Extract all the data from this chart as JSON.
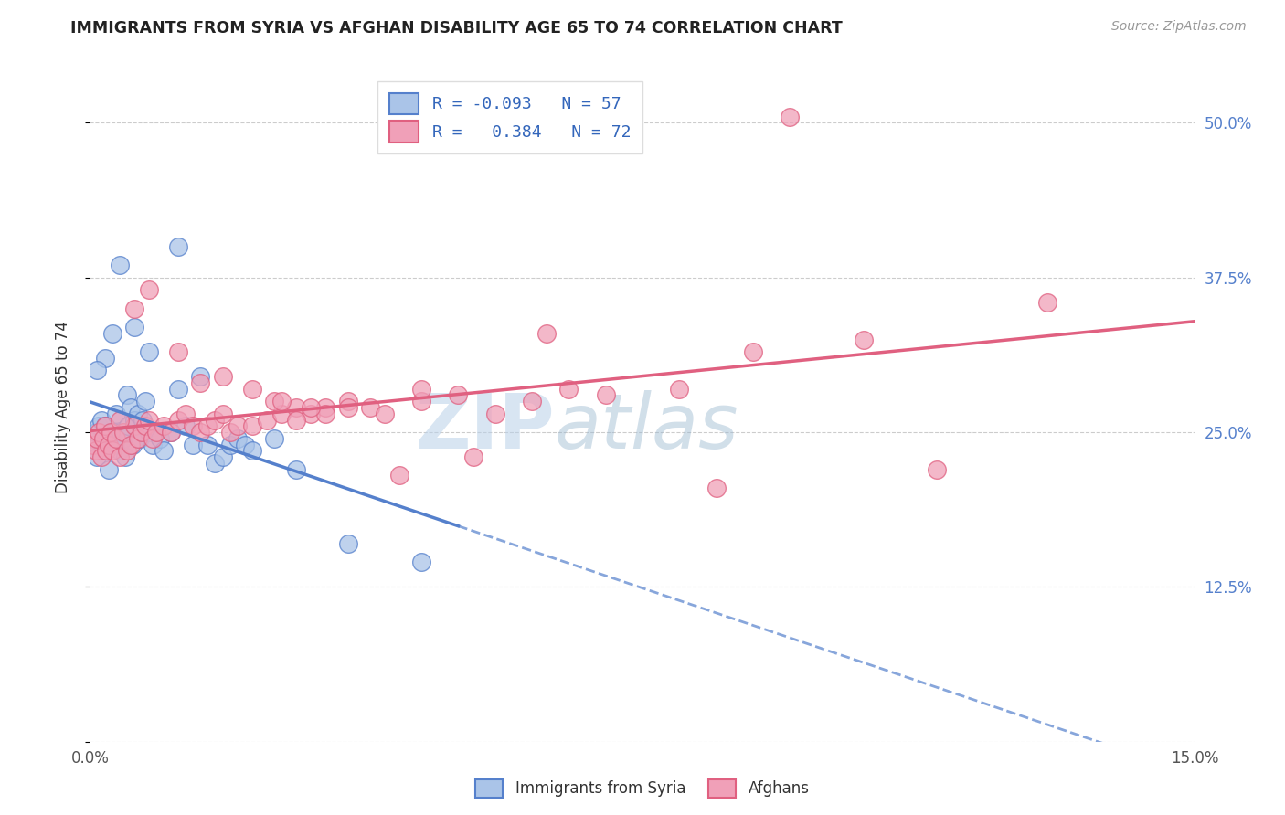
{
  "title": "IMMIGRANTS FROM SYRIA VS AFGHAN DISABILITY AGE 65 TO 74 CORRELATION CHART",
  "source": "Source: ZipAtlas.com",
  "ylabel": "Disability Age 65 to 74",
  "xlim": [
    0.0,
    15.0
  ],
  "ylim": [
    0.0,
    54.0
  ],
  "yticks": [
    0.0,
    12.5,
    25.0,
    37.5,
    50.0
  ],
  "ytick_labels_right": [
    "",
    "12.5%",
    "25.0%",
    "37.5%",
    "50.0%"
  ],
  "xticks": [
    0.0,
    3.0,
    6.0,
    9.0,
    12.0,
    15.0
  ],
  "xtick_labels": [
    "0.0%",
    "",
    "",
    "",
    "",
    "15.0%"
  ],
  "color_syria": "#aac4e8",
  "color_afghan": "#f0a0b8",
  "color_syria_line": "#5580cc",
  "color_afghan_line": "#e06080",
  "watermark_zip": "ZIP",
  "watermark_atlas": "atlas",
  "syria_x": [
    0.05,
    0.08,
    0.1,
    0.12,
    0.15,
    0.18,
    0.2,
    0.22,
    0.25,
    0.28,
    0.3,
    0.32,
    0.35,
    0.38,
    0.4,
    0.42,
    0.45,
    0.48,
    0.5,
    0.52,
    0.55,
    0.58,
    0.6,
    0.62,
    0.65,
    0.68,
    0.7,
    0.72,
    0.75,
    0.8,
    0.85,
    0.9,
    0.95,
    1.0,
    1.1,
    1.2,
    1.3,
    1.4,
    1.5,
    1.6,
    1.7,
    1.8,
    1.9,
    2.0,
    2.1,
    2.2,
    2.5,
    2.8,
    3.5,
    4.5,
    0.4,
    1.2,
    0.6,
    0.8,
    0.3,
    0.2,
    0.1
  ],
  "syria_y": [
    24.5,
    25.0,
    23.0,
    25.5,
    26.0,
    24.0,
    25.5,
    23.5,
    22.0,
    24.0,
    24.5,
    25.0,
    26.5,
    24.0,
    23.5,
    25.0,
    24.5,
    23.0,
    28.0,
    25.5,
    27.0,
    24.0,
    26.0,
    25.5,
    26.5,
    24.5,
    25.0,
    26.0,
    27.5,
    25.0,
    24.0,
    25.0,
    24.5,
    23.5,
    25.0,
    28.5,
    25.5,
    24.0,
    29.5,
    24.0,
    22.5,
    23.0,
    24.0,
    24.5,
    24.0,
    23.5,
    24.5,
    22.0,
    16.0,
    14.5,
    38.5,
    40.0,
    33.5,
    31.5,
    33.0,
    31.0,
    30.0
  ],
  "afghan_x": [
    0.05,
    0.08,
    0.1,
    0.12,
    0.15,
    0.18,
    0.2,
    0.22,
    0.25,
    0.28,
    0.3,
    0.35,
    0.4,
    0.45,
    0.5,
    0.55,
    0.6,
    0.65,
    0.7,
    0.75,
    0.8,
    0.85,
    0.9,
    1.0,
    1.1,
    1.2,
    1.3,
    1.4,
    1.5,
    1.6,
    1.7,
    1.8,
    1.9,
    2.0,
    2.2,
    2.4,
    2.6,
    2.8,
    3.0,
    3.2,
    3.5,
    3.8,
    4.0,
    4.5,
    5.0,
    5.5,
    6.0,
    6.5,
    7.0,
    8.0,
    9.0,
    10.5,
    13.0,
    0.6,
    0.8,
    1.2,
    0.4,
    2.5,
    3.2,
    2.8,
    4.2,
    5.2,
    1.5,
    1.8,
    2.2,
    2.6,
    3.0,
    3.5,
    4.5,
    6.2,
    8.5,
    11.5
  ],
  "afghan_y": [
    24.0,
    23.5,
    24.5,
    25.0,
    23.0,
    24.5,
    25.5,
    23.5,
    24.0,
    25.0,
    23.5,
    24.5,
    23.0,
    25.0,
    23.5,
    24.0,
    25.5,
    24.5,
    25.0,
    25.5,
    26.0,
    24.5,
    25.0,
    25.5,
    25.0,
    26.0,
    26.5,
    25.5,
    25.0,
    25.5,
    26.0,
    26.5,
    25.0,
    25.5,
    25.5,
    26.0,
    26.5,
    27.0,
    26.5,
    27.0,
    27.5,
    27.0,
    26.5,
    27.5,
    28.0,
    26.5,
    27.5,
    28.5,
    28.0,
    28.5,
    31.5,
    32.5,
    35.5,
    35.0,
    36.5,
    31.5,
    26.0,
    27.5,
    26.5,
    26.0,
    21.5,
    23.0,
    29.0,
    29.5,
    28.5,
    27.5,
    27.0,
    27.0,
    28.5,
    33.0,
    20.5,
    22.0
  ],
  "afghan_outlier_x": [
    9.5
  ],
  "afghan_outlier_y": [
    50.5
  ]
}
